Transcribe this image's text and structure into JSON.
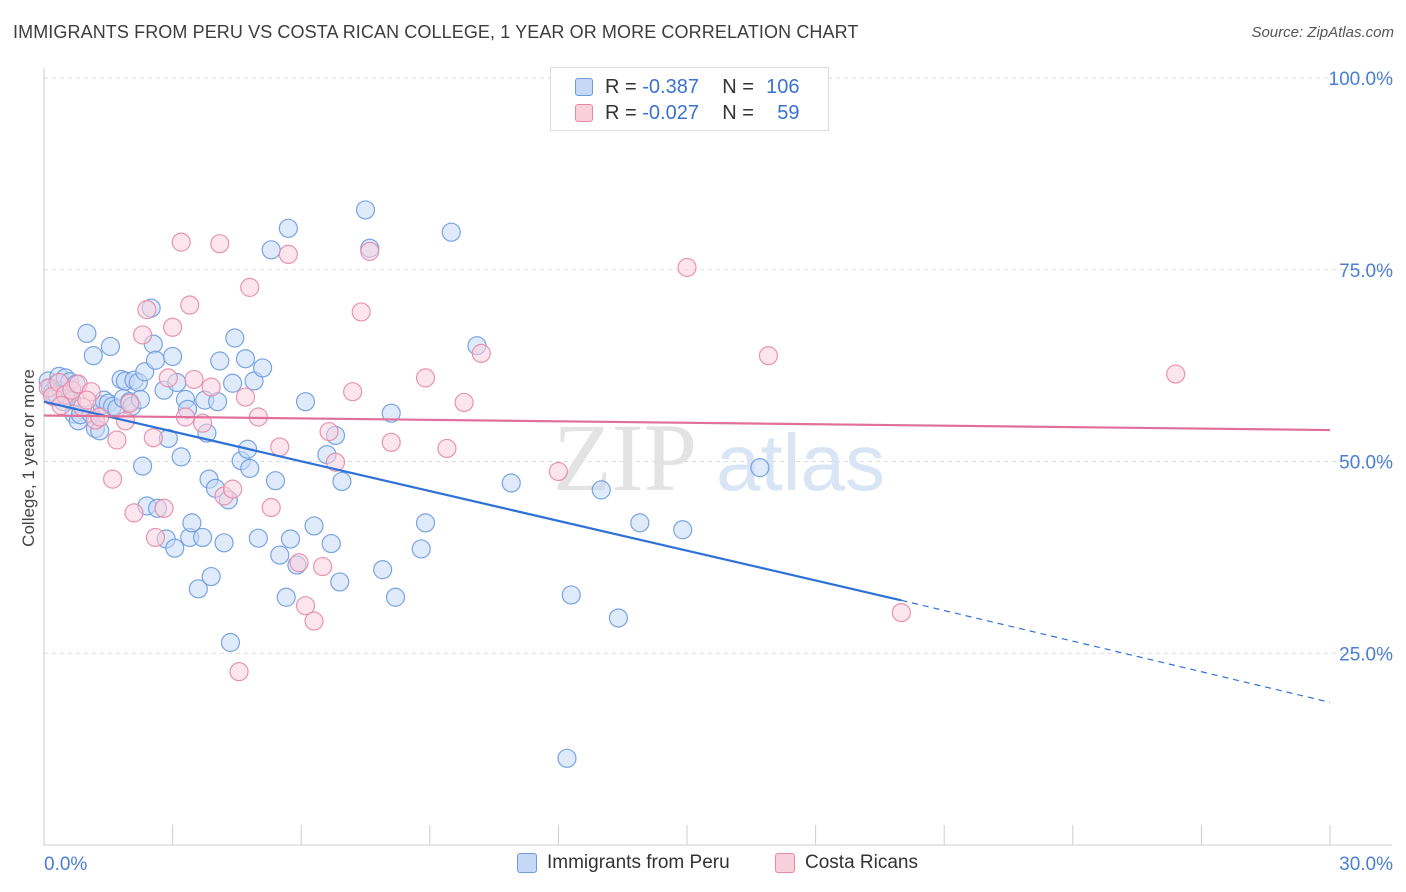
{
  "title": "IMMIGRANTS FROM PERU VS COSTA RICAN COLLEGE, 1 YEAR OR MORE CORRELATION CHART",
  "source": "Source: ZipAtlas.com",
  "watermark": {
    "part1": "ZIP",
    "part2": "atlas"
  },
  "legend": {
    "r_label": "R =",
    "n_label": "N =",
    "series": [
      {
        "r": "-0.387",
        "n": "106",
        "color": "#6b9be0",
        "fill": "#c5d8f5"
      },
      {
        "r": "-0.027",
        "n": "59",
        "color": "#e68aa8",
        "fill": "#f9cfdc"
      }
    ]
  },
  "bottom_legend": [
    "Immigrants from Peru",
    "Costa Ricans"
  ],
  "chart_data": {
    "type": "scatter",
    "title": "IMMIGRANTS FROM PERU VS COSTA RICAN COLLEGE, 1 YEAR OR MORE CORRELATION CHART",
    "xlabel": "",
    "ylabel": "College, 1 year or more",
    "xlim": [
      0,
      30
    ],
    "ylim": [
      0,
      100
    ],
    "x_tick_labels": [
      "0.0%",
      "30.0%"
    ],
    "y_tick_labels": [
      "25.0%",
      "50.0%",
      "75.0%",
      "100.0%"
    ],
    "y_ticks": [
      25,
      50,
      75,
      100
    ],
    "grid": true,
    "legend_position": "top-center",
    "series": [
      {
        "name": "Immigrants from Peru",
        "color": "#6b9be0",
        "trend": {
          "x0": 0,
          "y0": 57.8,
          "x1": 20,
          "y1": 31.9,
          "dashed_to": 30,
          "dashed_y": 18.6
        },
        "points": [
          [
            0.1,
            60.5
          ],
          [
            0.15,
            59.6
          ],
          [
            0.2,
            59.1
          ],
          [
            0.25,
            58.4
          ],
          [
            0.3,
            60.1
          ],
          [
            0.35,
            61.1
          ],
          [
            0.4,
            59.3
          ],
          [
            0.45,
            57.8
          ],
          [
            0.5,
            60.9
          ],
          [
            0.55,
            58.6
          ],
          [
            0.6,
            60.4
          ],
          [
            0.65,
            57.9
          ],
          [
            0.7,
            56.2
          ],
          [
            0.75,
            60.1
          ],
          [
            0.8,
            55.3
          ],
          [
            0.85,
            56.1
          ],
          [
            1.0,
            66.7
          ],
          [
            1.1,
            56.2
          ],
          [
            1.15,
            63.8
          ],
          [
            1.2,
            54.3
          ],
          [
            1.3,
            54.0
          ],
          [
            1.35,
            57.4
          ],
          [
            1.4,
            58.0
          ],
          [
            1.5,
            57.6
          ],
          [
            1.55,
            65.0
          ],
          [
            1.6,
            57.2
          ],
          [
            1.7,
            56.9
          ],
          [
            1.8,
            60.7
          ],
          [
            1.85,
            58.2
          ],
          [
            1.9,
            60.5
          ],
          [
            2.0,
            57.8
          ],
          [
            2.05,
            57.2
          ],
          [
            2.1,
            60.6
          ],
          [
            2.2,
            60.3
          ],
          [
            2.25,
            58.1
          ],
          [
            2.3,
            49.4
          ],
          [
            2.35,
            61.7
          ],
          [
            2.4,
            44.2
          ],
          [
            2.5,
            70.0
          ],
          [
            2.55,
            65.3
          ],
          [
            2.6,
            63.2
          ],
          [
            2.65,
            43.9
          ],
          [
            2.8,
            59.3
          ],
          [
            2.85,
            39.9
          ],
          [
            2.9,
            53.0
          ],
          [
            3.0,
            63.7
          ],
          [
            3.05,
            38.7
          ],
          [
            3.1,
            60.3
          ],
          [
            3.2,
            50.6
          ],
          [
            3.3,
            58.1
          ],
          [
            3.35,
            56.8
          ],
          [
            3.4,
            40.1
          ],
          [
            3.45,
            42.0
          ],
          [
            3.6,
            33.4
          ],
          [
            3.7,
            40.1
          ],
          [
            3.75,
            58.0
          ],
          [
            3.8,
            53.7
          ],
          [
            3.85,
            47.7
          ],
          [
            3.9,
            35.0
          ],
          [
            4.0,
            46.5
          ],
          [
            4.05,
            57.8
          ],
          [
            4.1,
            63.1
          ],
          [
            4.2,
            39.4
          ],
          [
            4.3,
            45.0
          ],
          [
            4.35,
            26.4
          ],
          [
            4.4,
            60.2
          ],
          [
            4.45,
            66.1
          ],
          [
            4.6,
            50.1
          ],
          [
            4.7,
            63.4
          ],
          [
            4.75,
            51.6
          ],
          [
            4.8,
            49.1
          ],
          [
            4.9,
            60.5
          ],
          [
            5.0,
            40.0
          ],
          [
            5.1,
            62.2
          ],
          [
            5.3,
            77.6
          ],
          [
            5.4,
            47.5
          ],
          [
            5.5,
            37.8
          ],
          [
            5.65,
            32.3
          ],
          [
            5.7,
            80.4
          ],
          [
            5.75,
            39.9
          ],
          [
            5.9,
            36.5
          ],
          [
            6.1,
            57.8
          ],
          [
            6.3,
            41.6
          ],
          [
            6.6,
            50.9
          ],
          [
            6.7,
            39.3
          ],
          [
            6.8,
            53.4
          ],
          [
            6.9,
            34.3
          ],
          [
            6.95,
            47.4
          ],
          [
            7.5,
            82.8
          ],
          [
            7.6,
            77.8
          ],
          [
            7.9,
            35.9
          ],
          [
            8.1,
            56.3
          ],
          [
            8.2,
            32.3
          ],
          [
            8.8,
            38.6
          ],
          [
            8.9,
            42.0
          ],
          [
            9.5,
            79.9
          ],
          [
            10.1,
            65.1
          ],
          [
            10.9,
            47.2
          ],
          [
            12.2,
            11.3
          ],
          [
            12.3,
            32.6
          ],
          [
            13.0,
            46.3
          ],
          [
            13.4,
            29.6
          ],
          [
            13.9,
            42.0
          ],
          [
            14.9,
            41.1
          ],
          [
            16.7,
            49.2
          ],
          [
            0.3,
            58.7
          ]
        ]
      },
      {
        "name": "Costa Ricans",
        "color": "#e68aa8",
        "trend": {
          "x0": 0,
          "y0": 56.0,
          "x1": 30,
          "y1": 54.1
        },
        "points": [
          [
            0.1,
            59.6
          ],
          [
            0.2,
            58.5
          ],
          [
            0.35,
            60.3
          ],
          [
            0.5,
            58.7
          ],
          [
            0.65,
            59.3
          ],
          [
            0.8,
            60.1
          ],
          [
            0.9,
            57.1
          ],
          [
            1.1,
            59.1
          ],
          [
            1.2,
            55.4
          ],
          [
            1.3,
            55.8
          ],
          [
            1.6,
            47.7
          ],
          [
            1.7,
            52.8
          ],
          [
            1.9,
            55.3
          ],
          [
            2.1,
            43.3
          ],
          [
            2.3,
            66.5
          ],
          [
            2.4,
            69.8
          ],
          [
            2.55,
            53.1
          ],
          [
            2.6,
            40.1
          ],
          [
            2.8,
            43.9
          ],
          [
            2.9,
            60.9
          ],
          [
            3.0,
            67.5
          ],
          [
            3.2,
            78.6
          ],
          [
            3.4,
            70.4
          ],
          [
            3.5,
            60.7
          ],
          [
            3.7,
            55.0
          ],
          [
            3.9,
            59.7
          ],
          [
            4.1,
            78.4
          ],
          [
            4.2,
            45.5
          ],
          [
            4.4,
            46.4
          ],
          [
            4.55,
            22.6
          ],
          [
            4.7,
            58.4
          ],
          [
            4.8,
            72.7
          ],
          [
            5.0,
            55.8
          ],
          [
            5.3,
            44.0
          ],
          [
            5.5,
            51.9
          ],
          [
            5.7,
            77.0
          ],
          [
            5.95,
            36.8
          ],
          [
            6.1,
            31.2
          ],
          [
            6.3,
            29.2
          ],
          [
            6.65,
            53.9
          ],
          [
            6.8,
            49.9
          ],
          [
            7.2,
            59.1
          ],
          [
            7.4,
            69.5
          ],
          [
            7.6,
            77.4
          ],
          [
            8.1,
            52.5
          ],
          [
            8.9,
            60.9
          ],
          [
            9.4,
            51.7
          ],
          [
            9.8,
            57.7
          ],
          [
            10.2,
            64.1
          ],
          [
            12.0,
            48.7
          ],
          [
            15.0,
            75.3
          ],
          [
            16.9,
            63.8
          ],
          [
            20.0,
            30.3
          ],
          [
            26.4,
            61.4
          ],
          [
            0.4,
            57.3
          ],
          [
            1.0,
            58.0
          ],
          [
            2.0,
            57.6
          ],
          [
            3.3,
            55.8
          ],
          [
            6.5,
            36.3
          ]
        ]
      }
    ]
  }
}
